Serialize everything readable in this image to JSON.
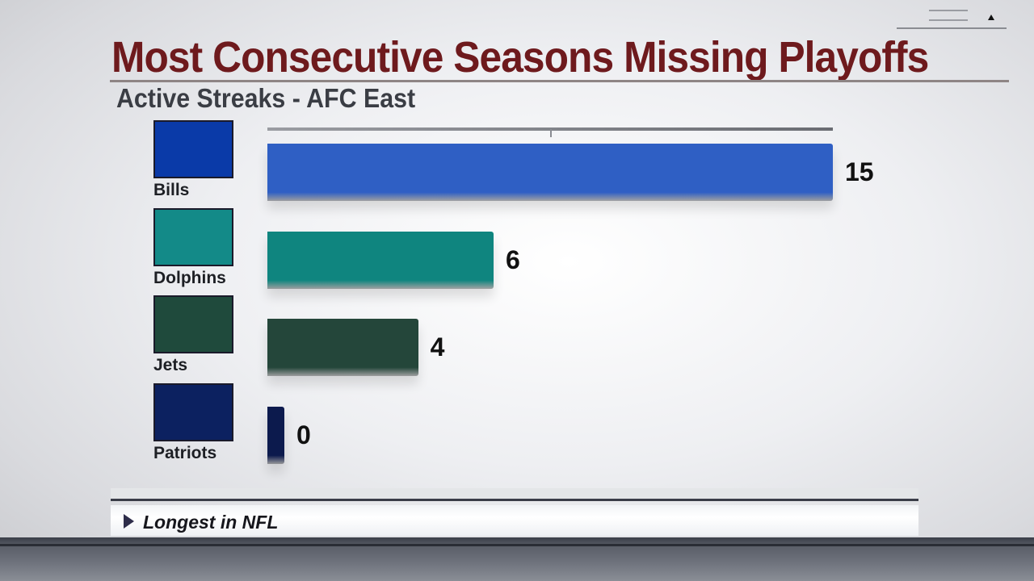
{
  "title": "Most Consecutive Seasons Missing Playoffs",
  "subtitle": "Active Streaks - AFC East",
  "footer": "Longest in NFL",
  "chart_data": {
    "type": "bar",
    "orientation": "horizontal",
    "title": "Most Consecutive Seasons Missing Playoffs",
    "subtitle": "Active Streaks - AFC East",
    "categories": [
      "Bills",
      "Dolphins",
      "Jets",
      "Patriots"
    ],
    "values": [
      15,
      6,
      4,
      0
    ],
    "colors": [
      "#2f5fc4",
      "#0f857f",
      "#24463a",
      "#0c1a4d"
    ],
    "logo_colors": [
      "#0a3aa8",
      "#138a88",
      "#1f4a3c",
      "#0c2160"
    ],
    "xlim": [
      0,
      15
    ],
    "grid": false
  }
}
